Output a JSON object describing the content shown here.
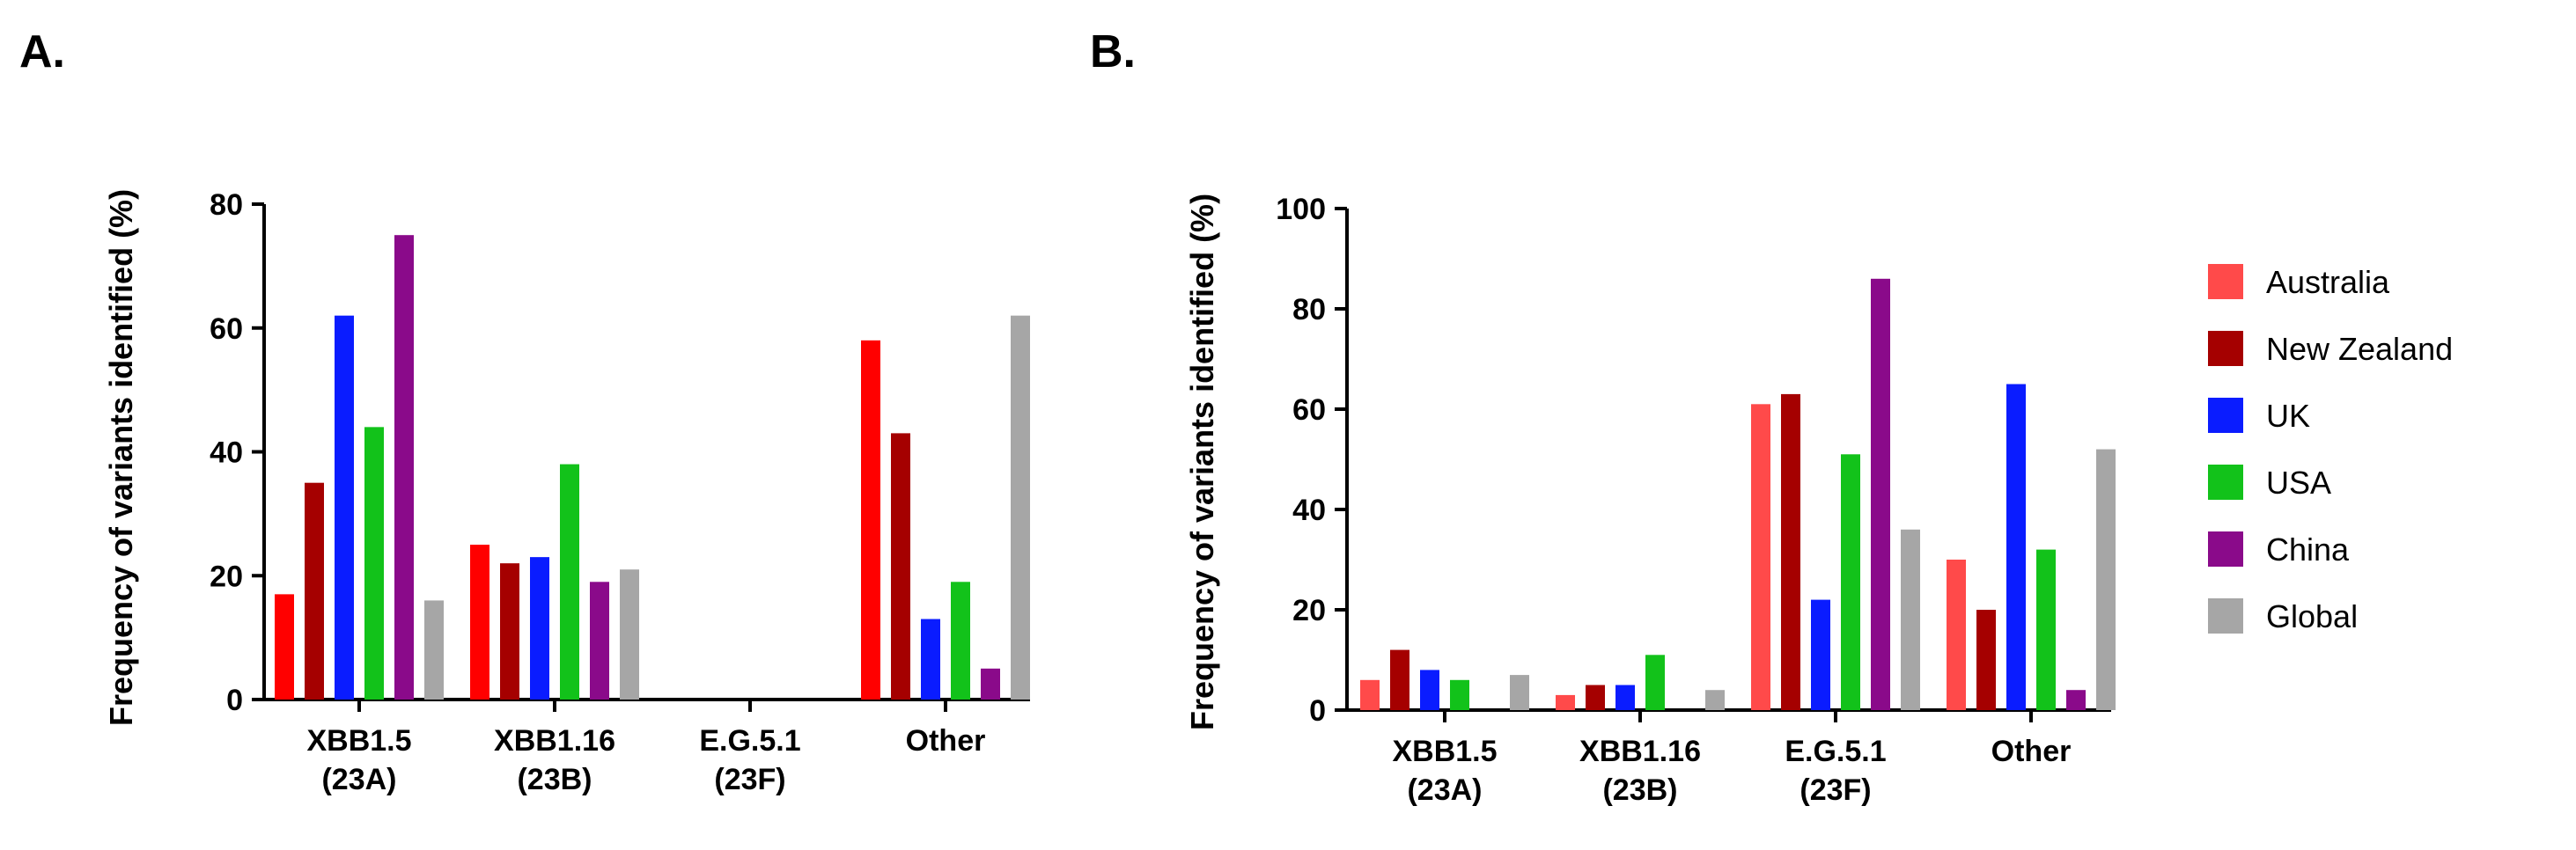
{
  "panels": [
    {
      "label": "A."
    },
    {
      "label": "B."
    }
  ],
  "colors": {
    "Australia": "#ff4a4a",
    "New Zealand": "#a50000",
    "UK": "#0a1cff",
    "USA": "#12c21a",
    "China": "#8a0a8a",
    "Global": "#a6a6a6",
    "Australia_A": "#ff0000"
  },
  "chart_data": [
    {
      "type": "bar",
      "panel": "A.",
      "ylabel": "Frequency of variants identified (%)",
      "xlabel": "",
      "ylim": [
        0,
        80
      ],
      "yticks": [
        0,
        20,
        40,
        60,
        80
      ],
      "categories": [
        [
          "XBB1.5",
          "(23A)"
        ],
        [
          "XBB1.16",
          "(23B)"
        ],
        [
          "E.G.5.1",
          "(23F)"
        ],
        [
          "Other"
        ]
      ],
      "series": [
        {
          "color": "#ff0000",
          "values": [
            17,
            25,
            0,
            58
          ]
        },
        {
          "color": "#a50000",
          "values": [
            35,
            22,
            0,
            43
          ]
        },
        {
          "color": "#0a1cff",
          "values": [
            62,
            23,
            0,
            13
          ]
        },
        {
          "color": "#12c21a",
          "values": [
            44,
            38,
            0,
            19
          ]
        },
        {
          "color": "#8a0a8a",
          "values": [
            75,
            19,
            0,
            5
          ]
        },
        {
          "color": "#a6a6a6",
          "values": [
            16,
            21,
            0,
            62
          ]
        }
      ]
    },
    {
      "type": "bar",
      "panel": "B.",
      "ylabel": "Frequency of variants identified (%)",
      "xlabel": "",
      "ylim": [
        0,
        100
      ],
      "yticks": [
        0,
        20,
        40,
        60,
        80,
        100
      ],
      "categories": [
        [
          "XBB1.5",
          "(23A)"
        ],
        [
          "XBB1.16",
          "(23B)"
        ],
        [
          "E.G.5.1",
          "(23F)"
        ],
        [
          "Other"
        ]
      ],
      "series": [
        {
          "name": "Australia",
          "color": "#ff4a4a",
          "values": [
            6,
            3,
            61,
            30
          ]
        },
        {
          "name": "New Zealand",
          "color": "#a50000",
          "values": [
            12,
            5,
            63,
            20
          ]
        },
        {
          "name": "UK",
          "color": "#0a1cff",
          "values": [
            8,
            5,
            22,
            65
          ]
        },
        {
          "name": "USA",
          "color": "#12c21a",
          "values": [
            6,
            11,
            51,
            32
          ]
        },
        {
          "name": "China",
          "color": "#8a0a8a",
          "values": [
            0,
            0,
            86,
            4
          ]
        },
        {
          "name": "Global",
          "color": "#a6a6a6",
          "values": [
            7,
            4,
            36,
            52
          ]
        }
      ],
      "legend_position": "right"
    }
  ]
}
